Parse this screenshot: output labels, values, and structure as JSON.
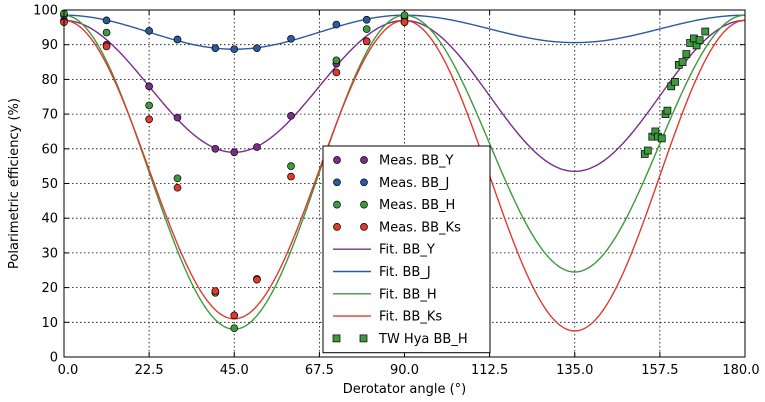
{
  "chart_data": {
    "type": "line",
    "title": "",
    "xlabel": "Derotator angle (°)",
    "ylabel": "Polarimetric efficiency (%)",
    "xlim": [
      0,
      180
    ],
    "ylim": [
      0,
      100
    ],
    "xticks": [
      "0.0",
      "22.5",
      "45.0",
      "67.5",
      "90.0",
      "112.5",
      "135.0",
      "157.5",
      "180.0"
    ],
    "yticks": [
      "0",
      "10",
      "20",
      "30",
      "40",
      "50",
      "60",
      "70",
      "80",
      "90",
      "100"
    ],
    "grid": true,
    "legend_position": "center",
    "colors": {
      "Y": "#7b2d8e",
      "J": "#2c5aa0",
      "H": "#3e9a3e",
      "Ks": "#e03a2f",
      "TW": "#3e9a3e"
    },
    "series": [
      {
        "name": "Meas. BB_Y",
        "kind": "measured",
        "band": "Y",
        "marker": "circle",
        "points": [
          [
            0,
            97
          ],
          [
            11.25,
            90
          ],
          [
            22.5,
            78
          ],
          [
            30,
            69
          ],
          [
            40,
            60
          ],
          [
            45,
            59
          ],
          [
            51,
            60.5
          ],
          [
            60,
            69.5
          ],
          [
            72,
            84.5
          ],
          [
            80,
            91
          ],
          [
            90,
            96.5
          ]
        ]
      },
      {
        "name": "Meas. BB_J",
        "kind": "measured",
        "band": "J",
        "marker": "circle",
        "points": [
          [
            0,
            98.5
          ],
          [
            11.25,
            97
          ],
          [
            22.5,
            94
          ],
          [
            30,
            91.5
          ],
          [
            40,
            89
          ],
          [
            45,
            88.7
          ],
          [
            51,
            89
          ],
          [
            60,
            91.7
          ],
          [
            72,
            95.8
          ],
          [
            80,
            97.2
          ],
          [
            90,
            97.8
          ]
        ]
      },
      {
        "name": "Meas. BB_H",
        "kind": "measured",
        "band": "H",
        "marker": "circle",
        "points": [
          [
            0,
            99
          ],
          [
            11.25,
            93.5
          ],
          [
            22.5,
            72.5
          ],
          [
            30,
            51.5
          ],
          [
            40,
            18.5
          ],
          [
            45,
            8.3
          ],
          [
            51,
            22.5
          ],
          [
            60,
            55
          ],
          [
            72,
            85.5
          ],
          [
            80,
            94.5
          ],
          [
            90,
            98.5
          ]
        ]
      },
      {
        "name": "Meas. BB_Ks",
        "kind": "measured",
        "band": "Ks",
        "marker": "circle",
        "points": [
          [
            0,
            96.5
          ],
          [
            11.25,
            89.5
          ],
          [
            22.5,
            68.5
          ],
          [
            30,
            48.8
          ],
          [
            40,
            19
          ],
          [
            45,
            12
          ],
          [
            51,
            22.3
          ],
          [
            60,
            52
          ],
          [
            72,
            82
          ],
          [
            80,
            91
          ],
          [
            90,
            96.5
          ]
        ]
      },
      {
        "name": "Fit. BB_Y",
        "kind": "fit",
        "band": "Y",
        "min": 53.5,
        "max": 97.0
      },
      {
        "name": "Fit. BB_J",
        "kind": "fit",
        "band": "J",
        "min": 88.7,
        "max": 98.5
      },
      {
        "name": "Fit. BB_H",
        "kind": "fit",
        "band": "H",
        "min": 8.0,
        "max": 98.5,
        "min_at_135": 24.5
      },
      {
        "name": "Fit. BB_Ks",
        "kind": "fit",
        "band": "Ks",
        "min": 11.0,
        "max": 97.0,
        "min_at_135": 7.5
      },
      {
        "name": "TW Hya BB_H",
        "kind": "measured",
        "band": "TW",
        "marker": "square",
        "points": [
          [
            153.5,
            58.5
          ],
          [
            154.3,
            59.5
          ],
          [
            155.5,
            63.5
          ],
          [
            156.3,
            65
          ],
          [
            157,
            63.5
          ],
          [
            158,
            63
          ],
          [
            159,
            70
          ],
          [
            159.5,
            71
          ],
          [
            160.5,
            78
          ],
          [
            161.5,
            79.3
          ],
          [
            162.5,
            84.2
          ],
          [
            163.5,
            85
          ],
          [
            164.5,
            87.3
          ],
          [
            165.5,
            90.5
          ],
          [
            166.5,
            91.8
          ],
          [
            167.2,
            89.8
          ],
          [
            168,
            91.3
          ],
          [
            169.5,
            93.8
          ]
        ]
      }
    ]
  }
}
